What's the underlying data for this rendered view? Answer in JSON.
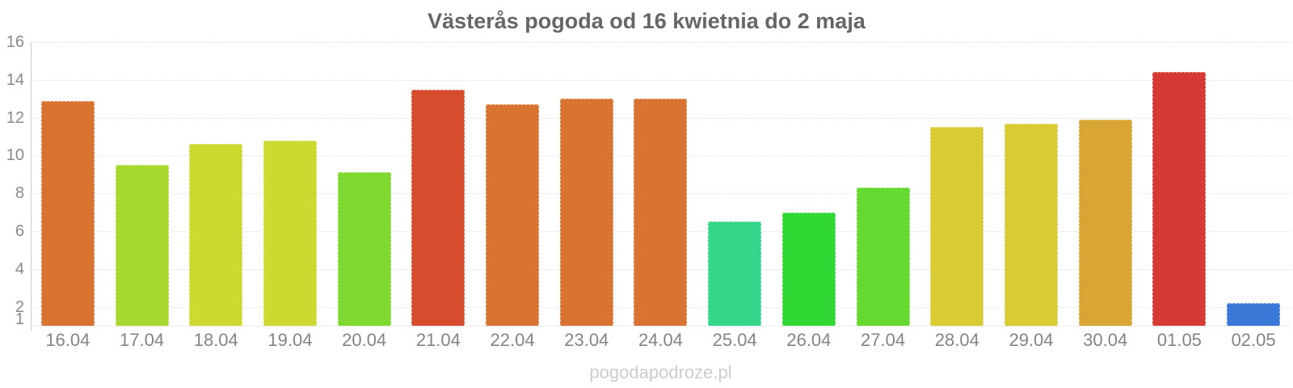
{
  "watermark": "pogodapodroze.pl",
  "colors": {
    "title": "#666666",
    "axis_labels": "#878787",
    "watermark": "#cccccc",
    "gridline": "#e3e3e3",
    "axis_line": "#c9c9c9",
    "background": "#ffffff"
  },
  "chart_data": {
    "type": "bar",
    "title": "Västerås pogoda od 16 kwietnia do 2 maja",
    "xlabel": "",
    "ylabel": "",
    "legend": "none",
    "grid": true,
    "ylim": [
      1,
      16
    ],
    "yticks": [
      16,
      14,
      12,
      10,
      8,
      6,
      4,
      2,
      1
    ],
    "categories": [
      "16.04",
      "17.04",
      "18.04",
      "19.04",
      "20.04",
      "21.04",
      "22.04",
      "23.04",
      "24.04",
      "25.04",
      "26.04",
      "27.04",
      "28.04",
      "29.04",
      "30.04",
      "01.05",
      "02.05"
    ],
    "values": [
      12.9,
      9.5,
      10.6,
      10.8,
      9.1,
      13.5,
      12.7,
      13.0,
      13.0,
      6.5,
      7.0,
      8.3,
      11.5,
      11.7,
      11.9,
      14.4,
      2.2
    ],
    "bar_colors": [
      "#d87332",
      "#a8d930",
      "#cdd930",
      "#cdd930",
      "#7fd930",
      "#d64d2e",
      "#d87332",
      "#d87332",
      "#d87332",
      "#35d689",
      "#31d733",
      "#66d930",
      "#d8cb33",
      "#d8cb33",
      "#d9a633",
      "#d63a35",
      "#3b79d8"
    ]
  }
}
